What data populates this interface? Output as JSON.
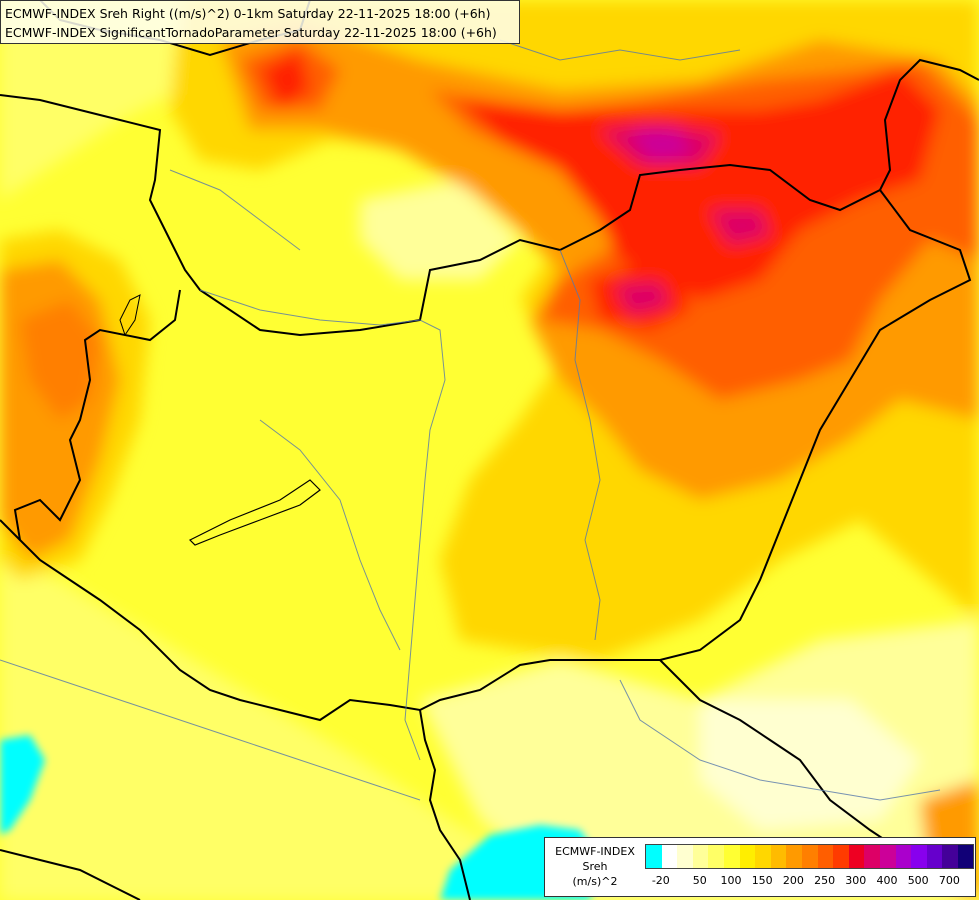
{
  "title": {
    "line1": "ECMWF-INDEX Sreh Right ((m/s)^2) 0-1km Saturday 22-11-2025 18:00 (+6h)",
    "line2": "ECMWF-INDEX SignificantTornadoParameter Saturday 22-11-2025 18:00 (+6h)"
  },
  "legend": {
    "line1": "ECMWF-INDEX",
    "line2": "Sreh",
    "line3": "(m/s)^2",
    "colors": [
      "#00ffff",
      "#ffffff",
      "#ffffd0",
      "#ffff99",
      "#ffff66",
      "#ffff33",
      "#ffee00",
      "#ffd700",
      "#ffbb00",
      "#ff9a00",
      "#ff7f00",
      "#ff5e00",
      "#ff3b00",
      "#ee0022",
      "#dd0066",
      "#cc0099",
      "#aa00cc",
      "#8800ee",
      "#6600cc",
      "#440099",
      "#110077"
    ],
    "ticks": [
      {
        "label": "-20",
        "index": 0.5
      },
      {
        "label": "50",
        "index": 3
      },
      {
        "label": "100",
        "index": 5
      },
      {
        "label": "150",
        "index": 7
      },
      {
        "label": "200",
        "index": 9
      },
      {
        "label": "250",
        "index": 11
      },
      {
        "label": "300",
        "index": 13
      },
      {
        "label": "400",
        "index": 15
      },
      {
        "label": "500",
        "index": 17
      },
      {
        "label": "700",
        "index": 19
      }
    ]
  }
}
